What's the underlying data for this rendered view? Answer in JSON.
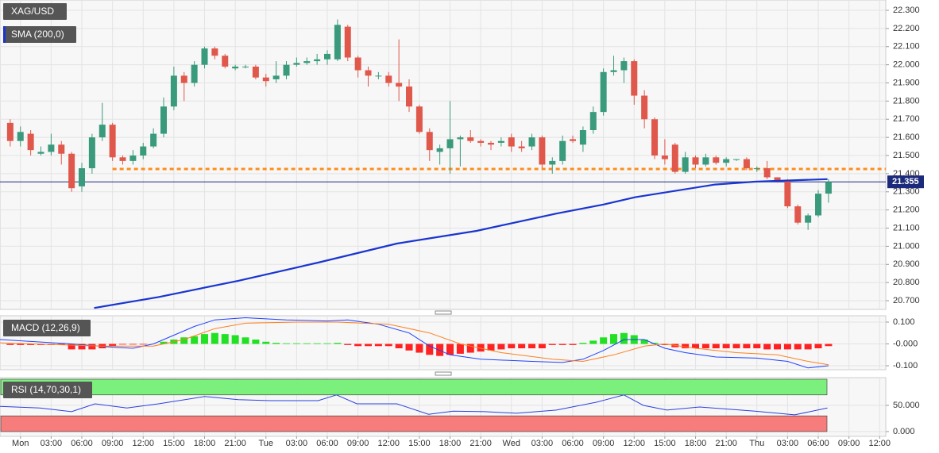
{
  "chart_data": [
    {
      "type": "candlestick",
      "title": "XAG/USD",
      "grid": true,
      "up_color": "#3a9a7c",
      "down_color": "#e0584b",
      "xlim": [
        -2,
        84.6
      ],
      "x": [
        -1,
        0,
        1,
        2,
        3,
        4,
        5,
        6,
        7,
        8,
        9,
        10,
        11,
        12,
        13,
        14,
        15,
        16,
        17,
        18,
        19,
        20,
        21,
        22,
        23,
        24,
        25,
        26,
        27,
        28,
        29,
        30,
        31,
        32,
        33,
        34,
        35,
        36,
        37,
        38,
        39,
        40,
        41,
        42,
        43,
        44,
        45,
        46,
        47,
        48,
        49,
        50,
        51,
        52,
        53,
        54,
        55,
        56,
        57,
        58,
        59,
        60,
        61,
        62,
        63,
        64,
        65,
        66,
        67,
        68,
        69,
        70,
        71,
        72,
        73,
        74,
        75,
        76,
        77,
        78,
        79
      ],
      "open": [
        21.68,
        21.58,
        21.62,
        21.51,
        21.52,
        21.56,
        21.51,
        21.33,
        21.43,
        21.6,
        21.67,
        21.49,
        21.47,
        21.5,
        21.55,
        21.62,
        21.77,
        21.94,
        21.9,
        22.0,
        22.09,
        22.05,
        21.98,
        21.99,
        21.99,
        21.93,
        21.92,
        21.94,
        22.0,
        22.01,
        22.02,
        22.03,
        22.03,
        22.21,
        22.04,
        21.97,
        21.94,
        21.94,
        21.9,
        21.88,
        21.77,
        21.63,
        21.52,
        21.54,
        21.59,
        21.6,
        21.58,
        21.57,
        21.57,
        21.6,
        21.55,
        21.55,
        21.6,
        21.45,
        21.47,
        21.59,
        21.56,
        21.64,
        21.74,
        21.96,
        21.97,
        22.02,
        21.83,
        21.7,
        21.5,
        21.56,
        21.41,
        21.49,
        21.45,
        21.49,
        21.46,
        21.48,
        21.48,
        21.43,
        21.43,
        21.38,
        21.36,
        21.22,
        21.13,
        21.17,
        21.29
      ],
      "high": [
        21.7,
        21.66,
        21.64,
        21.55,
        21.62,
        21.58,
        21.52,
        21.46,
        21.62,
        21.79,
        21.68,
        21.5,
        21.53,
        21.57,
        21.65,
        21.82,
        21.99,
        21.96,
        22.02,
        22.1,
        22.1,
        22.06,
        22.0,
        22.0,
        22.0,
        21.95,
        22.02,
        22.02,
        22.04,
        22.04,
        22.06,
        22.08,
        22.25,
        22.22,
        22.05,
        21.99,
        21.96,
        21.96,
        22.14,
        21.92,
        21.78,
        21.65,
        21.56,
        21.8,
        21.61,
        21.64,
        21.59,
        21.58,
        21.6,
        21.62,
        21.58,
        21.62,
        21.61,
        21.49,
        21.61,
        21.61,
        21.66,
        21.77,
        21.98,
        22.05,
        22.04,
        22.03,
        21.86,
        21.71,
        21.59,
        21.57,
        21.52,
        21.5,
        21.51,
        21.5,
        21.49,
        21.48,
        21.49,
        21.44,
        21.47,
        21.38,
        21.37,
        21.23,
        21.18,
        21.31,
        21.37
      ],
      "low": [
        21.55,
        21.55,
        21.5,
        21.5,
        21.5,
        21.45,
        21.3,
        21.3,
        21.4,
        21.58,
        21.47,
        21.45,
        21.45,
        21.48,
        21.54,
        21.6,
        21.75,
        21.8,
        21.88,
        21.98,
        22.03,
        21.98,
        21.97,
        21.98,
        21.92,
        21.88,
        21.9,
        21.92,
        21.99,
        22.0,
        22.0,
        22.0,
        22.02,
        22.02,
        21.93,
        21.88,
        21.92,
        21.88,
        21.8,
        21.74,
        21.62,
        21.47,
        21.45,
        21.4,
        21.44,
        21.57,
        21.55,
        21.53,
        21.55,
        21.52,
        21.52,
        21.53,
        21.43,
        21.4,
        21.45,
        21.57,
        21.52,
        21.62,
        21.72,
        21.94,
        21.9,
        21.78,
        21.65,
        21.48,
        21.45,
        21.4,
        21.4,
        21.43,
        21.44,
        21.45,
        21.44,
        21.47,
        21.42,
        21.41,
        21.37,
        21.35,
        21.21,
        21.12,
        21.09,
        21.16,
        21.24
      ],
      "close": [
        21.58,
        21.63,
        21.53,
        21.52,
        21.56,
        21.51,
        21.32,
        21.43,
        21.6,
        21.67,
        21.49,
        21.47,
        21.5,
        21.55,
        21.62,
        21.77,
        21.94,
        21.9,
        22.0,
        22.09,
        22.05,
        21.99,
        21.99,
        21.99,
        21.93,
        21.91,
        21.94,
        22.0,
        22.01,
        22.02,
        22.03,
        22.06,
        22.22,
        22.04,
        21.97,
        21.94,
        21.94,
        21.9,
        21.88,
        21.77,
        21.63,
        21.53,
        21.54,
        21.59,
        21.6,
        21.58,
        21.57,
        21.56,
        21.58,
        21.55,
        21.54,
        21.6,
        21.45,
        21.47,
        21.58,
        21.58,
        21.64,
        21.74,
        21.96,
        21.97,
        22.02,
        21.83,
        21.7,
        21.5,
        21.48,
        21.41,
        21.49,
        21.45,
        21.49,
        21.46,
        21.48,
        21.48,
        21.43,
        21.43,
        21.38,
        21.36,
        21.22,
        21.13,
        21.17,
        21.29,
        21.355
      ],
      "overlays": [
        {
          "name": "SMA (200,0)",
          "color": "#1a35d0",
          "x": [
            7.2,
            13.5,
            21.3,
            29.1,
            36.8,
            44.6,
            52.4,
            57.0,
            60.1,
            67.9,
            71.8,
            78.9
          ],
          "values": [
            20.66,
            20.72,
            20.81,
            20.91,
            21.015,
            21.085,
            21.18,
            21.23,
            21.27,
            21.34,
            21.356,
            21.37
          ]
        }
      ],
      "levels": [
        {
          "value": 21.426,
          "color": "#ff8c1a",
          "from_x": 9
        }
      ],
      "last_price": 21.355,
      "last_price_color": "#1b2a7a",
      "ylim": [
        20.652,
        22.357
      ],
      "yticks": [
        {
          "value": 22.3,
          "label": "22.300"
        },
        {
          "value": 22.2,
          "label": "22.200"
        },
        {
          "value": 22.1,
          "label": "22.100"
        },
        {
          "value": 22.0,
          "label": "22.000"
        },
        {
          "value": 21.9,
          "label": "21.900"
        },
        {
          "value": 21.8,
          "label": "21.800"
        },
        {
          "value": 21.7,
          "label": "21.700"
        },
        {
          "value": 21.6,
          "label": "21.600"
        },
        {
          "value": 21.5,
          "label": "21.500"
        },
        {
          "value": 21.4,
          "label": "21.400"
        },
        {
          "value": 21.3,
          "label": "21.300"
        },
        {
          "value": 21.2,
          "label": "21.200"
        },
        {
          "value": 21.1,
          "label": "21.100"
        },
        {
          "value": 21.0,
          "label": "21.000"
        },
        {
          "value": 20.9,
          "label": "20.900"
        },
        {
          "value": 20.8,
          "label": "20.800"
        },
        {
          "value": 20.7,
          "label": "20.700"
        }
      ]
    },
    {
      "type": "macd",
      "title": "MACD (12,26,9)",
      "grid": true,
      "positive_color": "#22e022",
      "negative_color": "#ff2222",
      "xlim": [
        -2,
        84.6
      ],
      "x": [
        -1,
        0,
        1,
        2,
        3,
        4,
        5,
        6,
        7,
        8,
        9,
        10,
        11,
        12,
        13,
        14,
        15,
        16,
        17,
        18,
        19,
        20,
        21,
        22,
        23,
        24,
        25,
        26,
        27,
        28,
        29,
        30,
        31,
        32,
        33,
        34,
        35,
        36,
        37,
        38,
        39,
        40,
        41,
        42,
        43,
        44,
        45,
        46,
        47,
        48,
        49,
        50,
        51,
        52,
        53,
        54,
        55,
        56,
        57,
        58,
        59,
        60,
        61,
        62,
        63,
        64,
        65,
        66,
        67,
        68,
        69,
        70,
        71,
        72,
        73,
        74,
        75,
        76,
        77,
        78,
        79
      ],
      "histogram": [
        -0.005,
        -0.005,
        -0.005,
        -0.005,
        -0.005,
        -0.005,
        -0.025,
        -0.025,
        -0.025,
        -0.02,
        -0.01,
        -0.003,
        -0.003,
        -0.003,
        0,
        0.01,
        0.02,
        0.03,
        0.035,
        0.045,
        0.05,
        0.045,
        0.04,
        0.03,
        0.02,
        0.01,
        0.005,
        0.003,
        0.003,
        0.003,
        0.003,
        0.003,
        0.005,
        -0.005,
        -0.01,
        -0.01,
        -0.01,
        -0.01,
        -0.02,
        -0.03,
        -0.04,
        -0.05,
        -0.055,
        -0.05,
        -0.045,
        -0.04,
        -0.035,
        -0.03,
        -0.025,
        -0.02,
        -0.02,
        -0.02,
        -0.02,
        -0.005,
        -0.005,
        -0.005,
        0.005,
        0.015,
        0.03,
        0.045,
        0.05,
        0.04,
        0.02,
        0.005,
        -0.005,
        -0.015,
        -0.02,
        -0.02,
        -0.02,
        -0.02,
        -0.02,
        -0.02,
        -0.02,
        -0.02,
        -0.025,
        -0.025,
        -0.025,
        -0.025,
        -0.025,
        -0.02,
        -0.01
      ],
      "lines": [
        {
          "color": "#2040ff",
          "x": [
            -2,
            5,
            9,
            11,
            13,
            15,
            17,
            19,
            22,
            26,
            30,
            32,
            35,
            38,
            40,
            42,
            45,
            50,
            53,
            55,
            57,
            59,
            61,
            63,
            65,
            68,
            72,
            75,
            77,
            79
          ],
          "values": [
            0.02,
            0,
            -0.015,
            -0.02,
            0,
            0.04,
            0.08,
            0.11,
            0.12,
            0.11,
            0.105,
            0.11,
            0.09,
            0.05,
            -0.01,
            -0.05,
            -0.07,
            -0.08,
            -0.085,
            -0.07,
            -0.03,
            0.02,
            0.02,
            -0.02,
            -0.04,
            -0.06,
            -0.065,
            -0.08,
            -0.11,
            -0.1
          ]
        },
        {
          "color": "#ff7f1f",
          "x": [
            -2,
            8,
            13,
            16,
            19,
            22,
            27,
            31,
            36,
            40,
            43,
            47,
            52,
            55,
            58,
            61,
            63,
            66,
            70,
            74,
            77,
            79
          ],
          "values": [
            0.005,
            -0.01,
            -0.01,
            0.02,
            0.07,
            0.095,
            0.1,
            0.1,
            0.09,
            0.05,
            0,
            -0.04,
            -0.07,
            -0.08,
            -0.05,
            -0.01,
            0,
            -0.02,
            -0.04,
            -0.05,
            -0.08,
            -0.095
          ]
        }
      ],
      "ylim": [
        -0.118,
        0.129
      ],
      "yticks": [
        {
          "value": 0.1,
          "label": "0.100"
        },
        {
          "value": 0,
          "label": "-0.000"
        },
        {
          "value": -0.1,
          "label": "-0.100"
        }
      ]
    },
    {
      "type": "rsi",
      "title": "RSI (14,70,30,1)",
      "grid": true,
      "color": "#2a3fe0",
      "bands": [
        {
          "from": 70,
          "to": 100,
          "color": "#7cf07c"
        },
        {
          "from": 0,
          "to": 30,
          "color": "#f77c7c"
        }
      ],
      "xlim": [
        -2,
        84.6
      ],
      "x": [
        -2,
        1.9,
        5.0,
        7.3,
        10.4,
        13.5,
        18.0,
        21.3,
        24.4,
        29.1,
        30.9,
        32.9,
        36.8,
        39.9,
        42.3,
        45.4,
        48.5,
        52.4,
        56.3,
        59.0,
        60.9,
        63.2,
        66.4,
        71.8,
        75.7,
        78.9
      ],
      "values": [
        48,
        45,
        38,
        53,
        45,
        53,
        67,
        61,
        59,
        59,
        70,
        53,
        53,
        33,
        39,
        38,
        35,
        41,
        56,
        70,
        50,
        41,
        47,
        39,
        32,
        45
      ],
      "ylim": [
        -9.1,
        103
      ],
      "yticks": [
        {
          "value": 50,
          "label": "50.000"
        },
        {
          "value": 0,
          "label": "0.000"
        }
      ],
      "xticks": [
        {
          "value": 0,
          "label": "Mon"
        },
        {
          "value": 3,
          "label": "03:00"
        },
        {
          "value": 6,
          "label": "06:00"
        },
        {
          "value": 9,
          "label": "09:00"
        },
        {
          "value": 12,
          "label": "12:00"
        },
        {
          "value": 15,
          "label": "15:00"
        },
        {
          "value": 18,
          "label": "18:00"
        },
        {
          "value": 21,
          "label": "21:00"
        },
        {
          "value": 24,
          "label": "Tue"
        },
        {
          "value": 27,
          "label": "03:00"
        },
        {
          "value": 30,
          "label": "06:00"
        },
        {
          "value": 33,
          "label": "09:00"
        },
        {
          "value": 36,
          "label": "12:00"
        },
        {
          "value": 39,
          "label": "15:00"
        },
        {
          "value": 42,
          "label": "18:00"
        },
        {
          "value": 45,
          "label": "21:00"
        },
        {
          "value": 48,
          "label": "Wed"
        },
        {
          "value": 51,
          "label": "03:00"
        },
        {
          "value": 54,
          "label": "06:00"
        },
        {
          "value": 57,
          "label": "09:00"
        },
        {
          "value": 60,
          "label": "12:00"
        },
        {
          "value": 63,
          "label": "15:00"
        },
        {
          "value": 66,
          "label": "18:00"
        },
        {
          "value": 69,
          "label": "21:00"
        },
        {
          "value": 72,
          "label": "Thu"
        },
        {
          "value": 75,
          "label": "03:00"
        },
        {
          "value": 78,
          "label": "06:00"
        },
        {
          "value": 81,
          "label": "09:00"
        },
        {
          "value": 84,
          "label": "12:00"
        }
      ]
    }
  ]
}
